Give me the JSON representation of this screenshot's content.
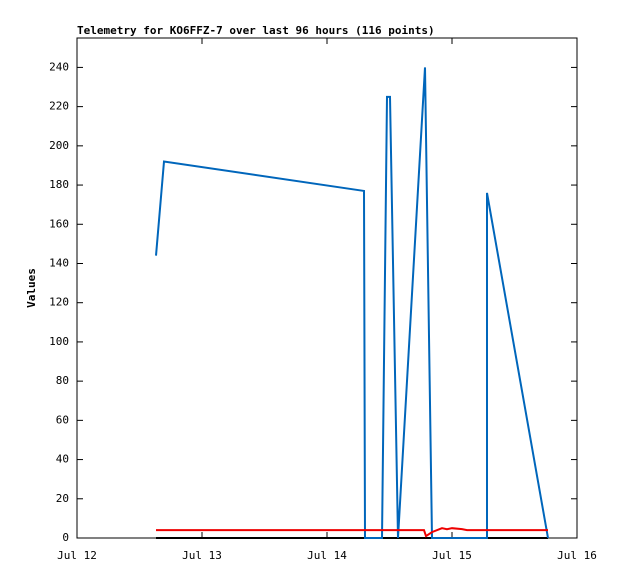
{
  "chart_data": {
    "type": "line",
    "title": "Telemetry for KO6FFZ-7 over last 96 hours (116 points)",
    "y_label": "Values",
    "xlim": [
      12,
      16
    ],
    "xticks": [
      {
        "value": 12,
        "label": "Jul 12"
      },
      {
        "value": 13,
        "label": "Jul 13"
      },
      {
        "value": 14,
        "label": "Jul 14"
      },
      {
        "value": 15,
        "label": "Jul 15"
      },
      {
        "value": 16,
        "label": "Jul 16"
      }
    ],
    "ylim": [
      0,
      255
    ],
    "yticks": [
      0,
      20,
      40,
      60,
      80,
      100,
      120,
      140,
      160,
      180,
      200,
      220,
      240
    ],
    "series": [
      {
        "color": "#000000",
        "x": [
          12.632,
          15.768
        ],
        "values": [
          0,
          0
        ]
      },
      {
        "color": "#0066bb",
        "x": [
          12.632,
          12.696,
          14.296,
          14.304,
          14.44,
          14.48,
          14.504,
          14.568,
          14.784,
          14.84,
          15.28,
          15.28,
          15.768
        ],
        "values": [
          144,
          192,
          177,
          0,
          0,
          225,
          225,
          0,
          240,
          0,
          0,
          176,
          0
        ]
      },
      {
        "color": "#ee0000",
        "x": [
          12.632,
          14.776,
          14.792,
          14.84,
          14.92,
          14.96,
          15.0,
          15.08,
          15.12,
          15.768
        ],
        "values": [
          4,
          4,
          1,
          3,
          5,
          4.5,
          5,
          4.5,
          4,
          4
        ]
      }
    ]
  }
}
